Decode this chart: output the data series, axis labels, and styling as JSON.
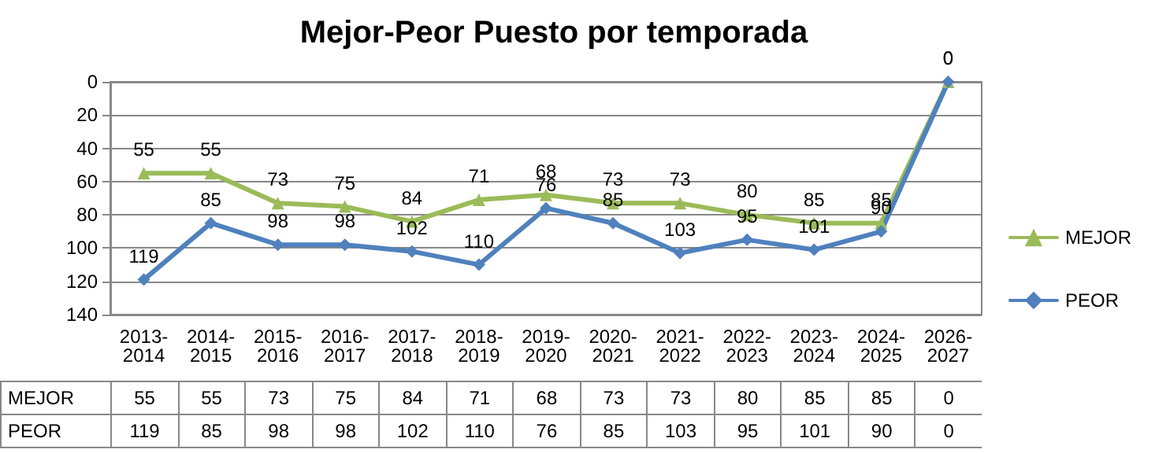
{
  "chart_data": {
    "type": "line",
    "title": "Mejor-Peor Puesto por temporada",
    "categories": [
      "2013-2014",
      "2014-2015",
      "2015-2016",
      "2016-2017",
      "2017-2018",
      "2018-2019",
      "2019-2020",
      "2020-2021",
      "2021-2022",
      "2022-2023",
      "2023-2024",
      "2024-2025",
      "2026-2027"
    ],
    "series": [
      {
        "name": "MEJOR",
        "color": "#9bbb59",
        "marker": "triangle",
        "values": [
          55,
          55,
          73,
          75,
          84,
          71,
          68,
          73,
          73,
          80,
          85,
          85,
          0
        ],
        "value_labels": [
          "55",
          "55",
          "73",
          "75",
          "84",
          "71",
          "68",
          "73",
          "73",
          "80",
          "85",
          "85",
          "0"
        ]
      },
      {
        "name": "PEOR",
        "color": "#4f81bd",
        "marker": "diamond",
        "values": [
          119,
          85,
          98,
          98,
          102,
          110,
          76,
          85,
          103,
          95,
          101,
          90,
          0
        ],
        "value_labels": [
          "119",
          "85",
          "98",
          "98",
          "102",
          "110",
          "76",
          "85",
          "103",
          "95",
          "101",
          "90",
          "0"
        ]
      }
    ],
    "ylim": [
      140,
      0
    ],
    "yticks": [
      0,
      20,
      40,
      60,
      80,
      100,
      120,
      140
    ],
    "annotations": [
      "55",
      "55",
      "73",
      "75",
      "84",
      "71",
      "68",
      "73",
      "73",
      "80",
      "85",
      "85",
      "0",
      "119",
      "85",
      "98",
      "98",
      "102",
      "110",
      "76",
      "85",
      "103",
      "95",
      "101",
      "90",
      "0"
    ],
    "grid": "y",
    "legend": "right"
  }
}
